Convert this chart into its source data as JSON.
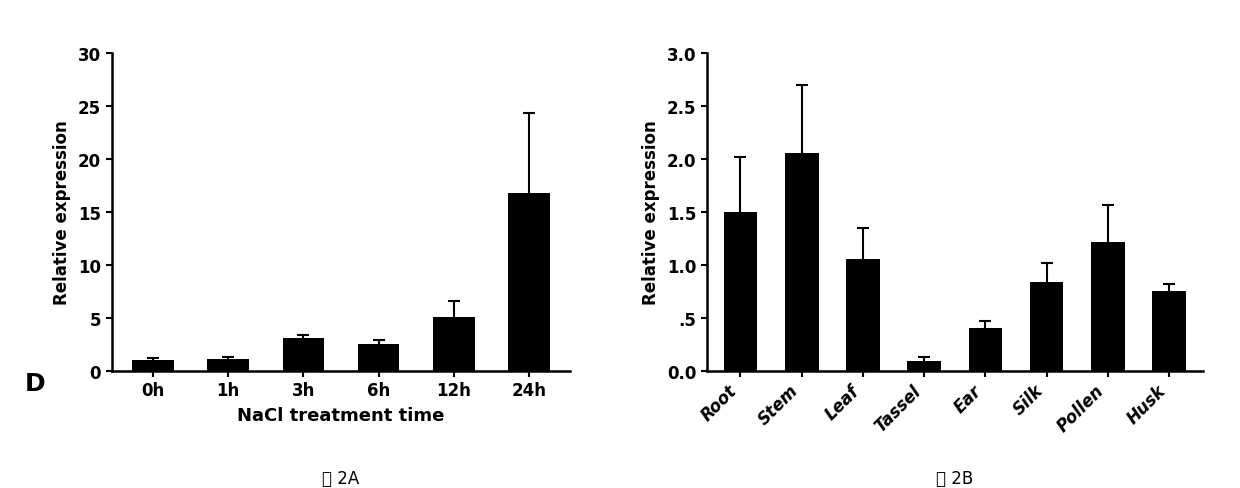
{
  "chart_A": {
    "categories": [
      "0h",
      "1h",
      "3h",
      "6h",
      "12h",
      "24h"
    ],
    "values": [
      1.0,
      1.1,
      3.1,
      2.5,
      5.1,
      16.8
    ],
    "errors": [
      0.15,
      0.15,
      0.25,
      0.4,
      1.5,
      7.5
    ],
    "ylabel": "Relative expression",
    "xlabel": "NaCl treatment time",
    "ylim": [
      0,
      30
    ],
    "yticks": [
      0,
      5,
      10,
      15,
      20,
      25,
      30
    ],
    "bar_color": "#000000",
    "label": "D",
    "caption": "图 2A"
  },
  "chart_B": {
    "categories": [
      "Root",
      "Stem",
      "Leaf",
      "Tassel",
      "Ear",
      "Silk",
      "Pollen",
      "Husk"
    ],
    "values": [
      1.5,
      2.05,
      1.05,
      0.09,
      0.4,
      0.84,
      1.21,
      0.75
    ],
    "errors": [
      0.52,
      0.65,
      0.3,
      0.04,
      0.07,
      0.18,
      0.35,
      0.07
    ],
    "ylabel": "Relative expression",
    "xlabel": "",
    "ylim": [
      0,
      3.0
    ],
    "yticks": [
      0.0,
      0.5,
      1.0,
      1.5,
      2.0,
      2.5,
      3.0
    ],
    "yticklabels": [
      "0.0",
      ".5",
      "1.0",
      "1.5",
      "2.0",
      "2.5",
      "3.0"
    ],
    "bar_color": "#000000",
    "caption": "图 2B"
  },
  "figure_bg": "#ffffff",
  "bar_width": 0.55,
  "capsize": 4,
  "elinewidth": 1.5,
  "ecapthick": 1.5
}
